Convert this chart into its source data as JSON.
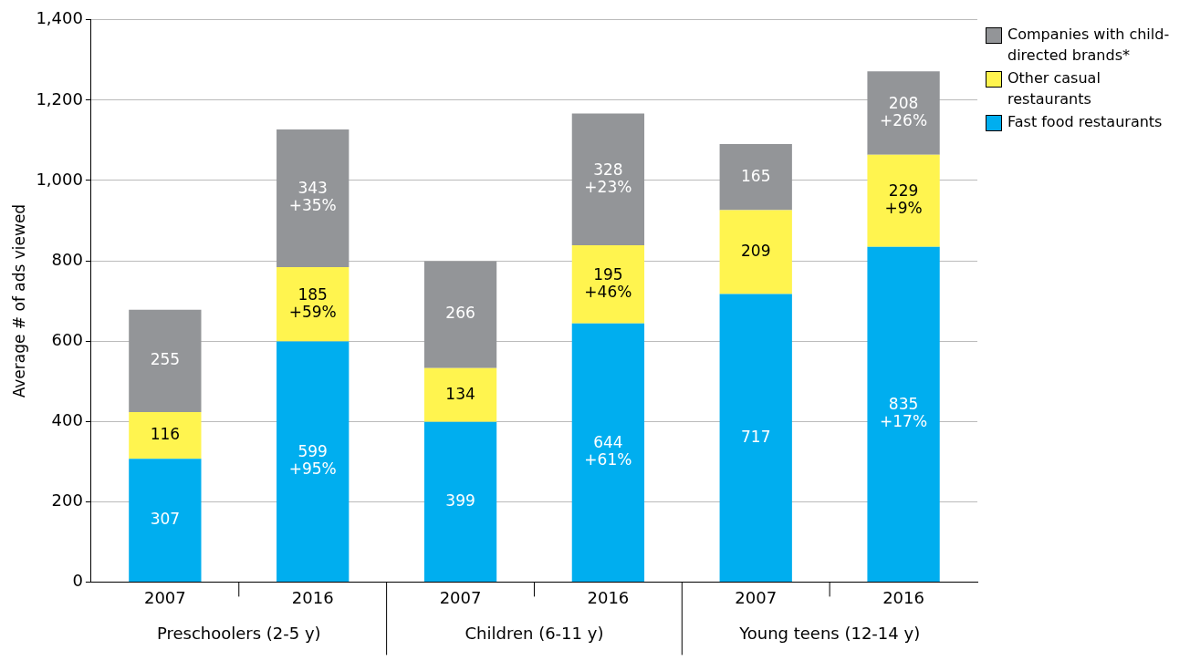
{
  "chart_data": {
    "type": "bar",
    "stacked": true,
    "ylabel": "Average # of ads viewed",
    "categories": [
      "2007",
      "2016",
      "2007",
      "2016",
      "2007",
      "2016"
    ],
    "series": [
      {
        "name": "Fast food restaurants",
        "color": "#00aeef",
        "values": [
          307,
          599,
          399,
          644,
          717,
          835
        ],
        "value_labels": [
          "307",
          "599\n+95%",
          "399",
          "644\n+61%",
          "717",
          "835\n+17%"
        ]
      },
      {
        "name": "Other casual restaurants",
        "color": "#fff44f",
        "values": [
          116,
          185,
          134,
          195,
          209,
          229
        ],
        "value_labels": [
          "116",
          "185\n+59%",
          "134",
          "195\n+46%",
          "209",
          "229\n+9%"
        ]
      },
      {
        "name": "Companies with child-directed brands*",
        "color": "#939598",
        "values": [
          255,
          343,
          266,
          328,
          165,
          208
        ],
        "value_labels": [
          "255",
          "343\n+35%",
          "266",
          "328\n+23%",
          "165",
          "208\n+26%"
        ]
      }
    ],
    "ylim": [
      0,
      1400
    ],
    "yticks": [
      0,
      200,
      400,
      600,
      800,
      {
        "value": 1000,
        "label": "1,000"
      },
      {
        "value": 1200,
        "label": "1,200"
      },
      {
        "value": 1400,
        "label": "1,400"
      }
    ],
    "grid": "y",
    "legend": "top right",
    "annotations": [
      "Preschoolers (2-5 y)",
      "Children (6-11 y)",
      "Young teens (12-14 y)"
    ]
  }
}
